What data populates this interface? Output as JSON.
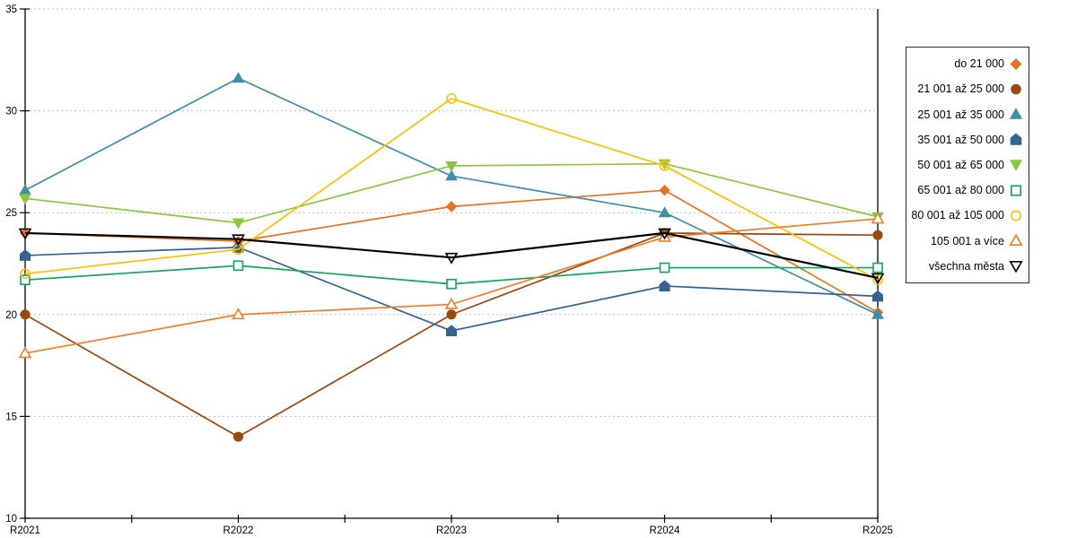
{
  "chart_data": {
    "type": "line",
    "title": "",
    "xlabel": "",
    "ylabel": "",
    "x": [
      "R2021",
      "R2022",
      "R2023",
      "R2024",
      "R2025"
    ],
    "ylim": [
      10,
      35
    ],
    "yticks": [
      10,
      15,
      20,
      25,
      30,
      35
    ],
    "grid": "horizontal-dashed",
    "grid_color": "#bfbfbf",
    "axis_color": "#000000",
    "legend_position": "right-box",
    "series": [
      {
        "name": "do 21 000",
        "color": "#E8731E",
        "marker": "diamond",
        "filled": true,
        "values": [
          24.0,
          23.6,
          25.3,
          26.1,
          20.1
        ]
      },
      {
        "name": "21 001 až 25 000",
        "color": "#9B4710",
        "marker": "circle",
        "filled": true,
        "values": [
          20.0,
          14.0,
          20.0,
          24.0,
          23.9
        ]
      },
      {
        "name": "25 001 až 35 000",
        "color": "#3E8FA8",
        "marker": "triangle-up",
        "filled": true,
        "values": [
          26.1,
          31.6,
          26.8,
          25.0,
          20.0
        ]
      },
      {
        "name": "35 001 až 50 000",
        "color": "#35628F",
        "marker": "pentagon",
        "filled": true,
        "values": [
          22.9,
          23.3,
          19.2,
          21.4,
          20.9
        ]
      },
      {
        "name": "50 001 až 65 000",
        "color": "#8CC63F",
        "marker": "triangle-down",
        "filled": true,
        "values": [
          25.7,
          24.5,
          27.3,
          27.4,
          24.8
        ]
      },
      {
        "name": "65 001 až 80 000",
        "color": "#12A45F",
        "marker": "square",
        "filled": false,
        "values": [
          21.7,
          22.4,
          21.5,
          22.3,
          22.3
        ]
      },
      {
        "name": "80 001 až 105 000",
        "color": "#FFC000",
        "marker": "circle",
        "filled": false,
        "values": [
          22.0,
          23.2,
          30.6,
          27.3,
          21.7
        ]
      },
      {
        "name": "105 001 a více",
        "color": "#F07E28",
        "marker": "triangle-up",
        "filled": false,
        "values": [
          18.1,
          20.0,
          20.5,
          23.8,
          24.7
        ]
      },
      {
        "name": "všechna města",
        "color": "#000000",
        "marker": "triangle-down",
        "filled": false,
        "values": [
          24.0,
          23.7,
          22.8,
          24.0,
          21.8
        ],
        "line_width": 2.2
      }
    ]
  }
}
